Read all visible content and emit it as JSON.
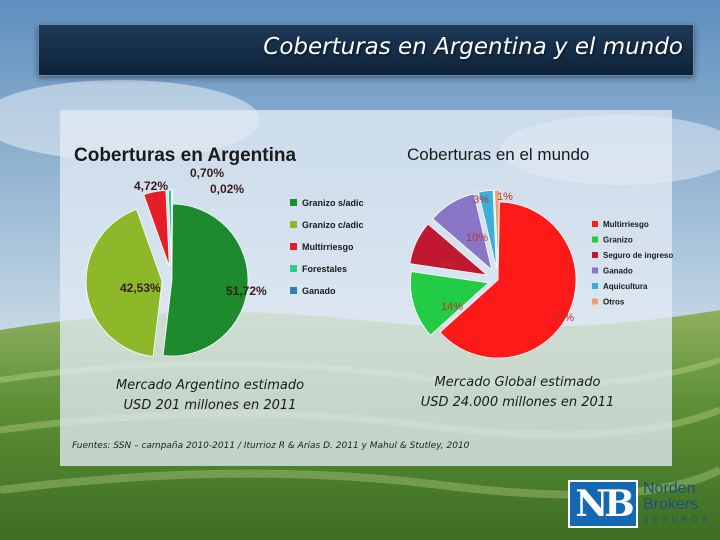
{
  "title": "Coberturas en Argentina y el mundo",
  "captions": {
    "argentina": [
      "Mercado Argentino estimado",
      "USD 201 millones en 2011"
    ],
    "world": [
      "Mercado Global estimado",
      "USD 24.000 millones en 2011"
    ]
  },
  "sources": "Fuentes: SSN – campaña 2010-2011 / Iturrioz R & Arias D. 2011 y Mahul & Stutley, 2010",
  "logo": {
    "mark": "NB",
    "line1": "Norden",
    "line2": "Brokers",
    "line3": "SEGUROS"
  },
  "chart_data": [
    {
      "type": "pie",
      "title": "Coberturas en Argentina",
      "legend_position": "right",
      "slices": [
        {
          "label": "Granizo s/adic",
          "value": 51.72,
          "value_label": "51,72%",
          "color": "#1e8a2e"
        },
        {
          "label": "Granizo c/adic",
          "value": 42.53,
          "value_label": "42,53%",
          "color": "#8cb82a"
        },
        {
          "label": "Multirriesgo",
          "value": 4.72,
          "value_label": "4,72%",
          "color": "#e41e26"
        },
        {
          "label": "Forestales",
          "value": 0.7,
          "value_label": "0,70%",
          "color": "#2ecc8a"
        },
        {
          "label": "Ganado",
          "value": 0.02,
          "value_label": "0,02%",
          "color": "#2a7fb5"
        }
      ]
    },
    {
      "type": "pie",
      "title": "Coberturas en el mundo",
      "legend_position": "right",
      "slices": [
        {
          "label": "Multirriesgo",
          "value": 63,
          "value_label": "63%",
          "color": "#ff1a1a"
        },
        {
          "label": "Granizo",
          "value": 14,
          "value_label": "14%",
          "color": "#22cc44"
        },
        {
          "label": "Seguro de ingreso",
          "value": 9,
          "value_label": "9%",
          "color": "#c01830"
        },
        {
          "label": "Ganado",
          "value": 10,
          "value_label": "10%",
          "color": "#8a76c6"
        },
        {
          "label": "Aquicultura",
          "value": 3,
          "value_label": "3%",
          "color": "#38b0d8"
        },
        {
          "label": "Otros",
          "value": 1,
          "value_label": "1%",
          "color": "#f0a070"
        }
      ]
    }
  ]
}
